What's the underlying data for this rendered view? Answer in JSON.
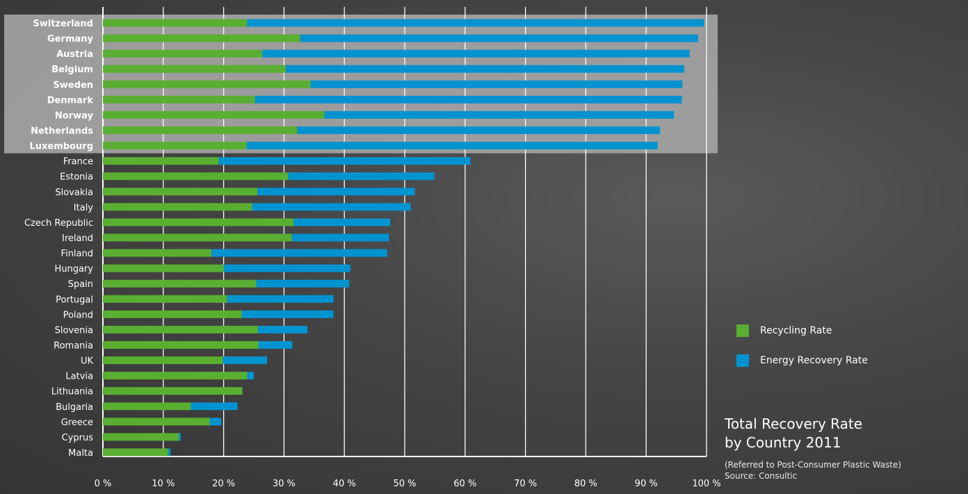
{
  "colors": {
    "recycling": "#5aae32",
    "energy": "#0093d0",
    "highlight": "#a4a4a4",
    "gridline": "#ffffff",
    "label": "#ffffff",
    "highlight_label": "#ffffff"
  },
  "legend": {
    "recycling_label": "Recycling Rate",
    "energy_label": "Energy Recovery Rate"
  },
  "title": {
    "line1": "Total Recovery Rate",
    "line2": "by Country 2011",
    "note": "(Referred to Post-Consumer Plastic Waste)",
    "source": "Source: Consultic"
  },
  "chart_data": {
    "type": "bar",
    "orientation": "horizontal",
    "stacked": true,
    "categories": [
      "Switzerland",
      "Germany",
      "Austria",
      "Belgium",
      "Sweden",
      "Denmark",
      "Norway",
      "Netherlands",
      "Luxembourg",
      "France",
      "Estonia",
      "Slovakia",
      "Italy",
      "Czech Republic",
      "Ireland",
      "Finland",
      "Hungary",
      "Spain",
      "Portugal",
      "Poland",
      "Slovenia",
      "Romania",
      "UK",
      "Latvia",
      "Lithuania",
      "Bulgaria",
      "Greece",
      "Cyprus",
      "Malta"
    ],
    "highlighted_categories": [
      "Switzerland",
      "Germany",
      "Austria",
      "Belgium",
      "Sweden",
      "Denmark",
      "Norway",
      "Netherlands",
      "Luxembourg"
    ],
    "series": [
      {
        "name": "Recycling Rate",
        "values": [
          23.9,
          32.7,
          26.4,
          30.3,
          34.4,
          25.2,
          36.7,
          32.2,
          23.8,
          19.2,
          30.7,
          25.6,
          24.7,
          31.6,
          31.3,
          18.0,
          20.0,
          25.4,
          20.6,
          23.0,
          25.7,
          25.8,
          19.9,
          23.9,
          23.1,
          14.6,
          17.7,
          12.6,
          10.8
        ]
      },
      {
        "name": "Energy Recovery Rate",
        "values": [
          75.7,
          65.9,
          70.8,
          66.0,
          61.6,
          70.7,
          57.9,
          60.1,
          68.1,
          41.7,
          24.2,
          26.1,
          26.3,
          16.0,
          16.1,
          29.1,
          21.0,
          15.4,
          17.6,
          15.2,
          8.2,
          5.6,
          7.3,
          1.1,
          0.0,
          7.7,
          1.9,
          0.3,
          0.4
        ]
      }
    ],
    "xlim": [
      0,
      100
    ],
    "xticks": [
      0,
      10,
      20,
      30,
      40,
      50,
      60,
      70,
      80,
      90,
      100
    ],
    "xtick_labels": [
      "0 %",
      "10 %",
      "20 %",
      "30 %",
      "40 %",
      "50 %",
      "60 %",
      "70 %",
      "80 %",
      "90 %",
      "100 %"
    ],
    "grid": true,
    "legend_position": "right"
  }
}
